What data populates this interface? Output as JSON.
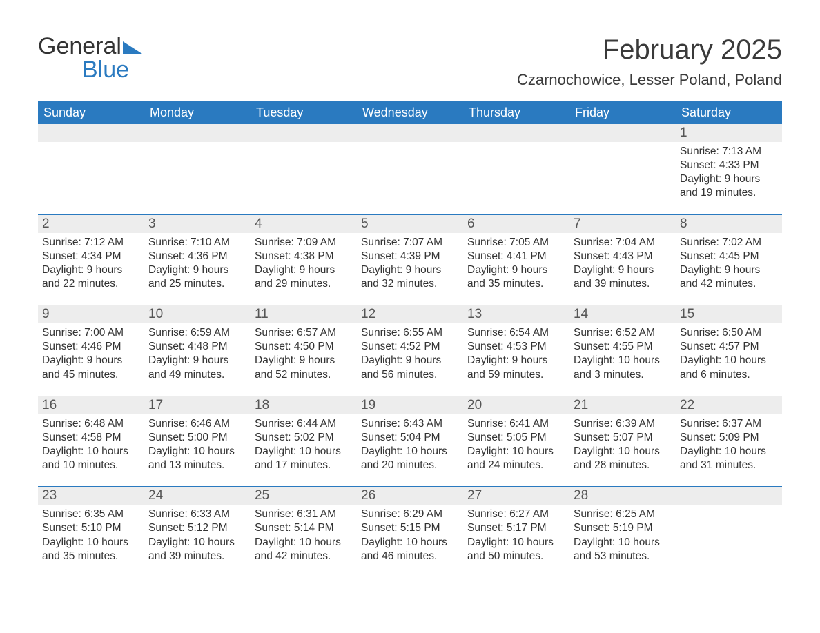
{
  "brand": {
    "name_part1": "General",
    "name_part2": "Blue",
    "brand_color": "#2a7ac0",
    "text_color": "#333333"
  },
  "title": "February 2025",
  "location": "Czarnochowice, Lesser Poland, Poland",
  "colors": {
    "header_bg": "#2a7ac0",
    "header_text": "#ffffff",
    "daynum_bg": "#ededed",
    "text": "#333333",
    "sep_line": "#2a7ac0",
    "background": "#ffffff"
  },
  "day_headers": [
    "Sunday",
    "Monday",
    "Tuesday",
    "Wednesday",
    "Thursday",
    "Friday",
    "Saturday"
  ],
  "weeks": [
    [
      {
        "day": "",
        "sunrise": "",
        "sunset": "",
        "daylight": ""
      },
      {
        "day": "",
        "sunrise": "",
        "sunset": "",
        "daylight": ""
      },
      {
        "day": "",
        "sunrise": "",
        "sunset": "",
        "daylight": ""
      },
      {
        "day": "",
        "sunrise": "",
        "sunset": "",
        "daylight": ""
      },
      {
        "day": "",
        "sunrise": "",
        "sunset": "",
        "daylight": ""
      },
      {
        "day": "",
        "sunrise": "",
        "sunset": "",
        "daylight": ""
      },
      {
        "day": "1",
        "sunrise": "Sunrise: 7:13 AM",
        "sunset": "Sunset: 4:33 PM",
        "daylight": "Daylight: 9 hours and 19 minutes."
      }
    ],
    [
      {
        "day": "2",
        "sunrise": "Sunrise: 7:12 AM",
        "sunset": "Sunset: 4:34 PM",
        "daylight": "Daylight: 9 hours and 22 minutes."
      },
      {
        "day": "3",
        "sunrise": "Sunrise: 7:10 AM",
        "sunset": "Sunset: 4:36 PM",
        "daylight": "Daylight: 9 hours and 25 minutes."
      },
      {
        "day": "4",
        "sunrise": "Sunrise: 7:09 AM",
        "sunset": "Sunset: 4:38 PM",
        "daylight": "Daylight: 9 hours and 29 minutes."
      },
      {
        "day": "5",
        "sunrise": "Sunrise: 7:07 AM",
        "sunset": "Sunset: 4:39 PM",
        "daylight": "Daylight: 9 hours and 32 minutes."
      },
      {
        "day": "6",
        "sunrise": "Sunrise: 7:05 AM",
        "sunset": "Sunset: 4:41 PM",
        "daylight": "Daylight: 9 hours and 35 minutes."
      },
      {
        "day": "7",
        "sunrise": "Sunrise: 7:04 AM",
        "sunset": "Sunset: 4:43 PM",
        "daylight": "Daylight: 9 hours and 39 minutes."
      },
      {
        "day": "8",
        "sunrise": "Sunrise: 7:02 AM",
        "sunset": "Sunset: 4:45 PM",
        "daylight": "Daylight: 9 hours and 42 minutes."
      }
    ],
    [
      {
        "day": "9",
        "sunrise": "Sunrise: 7:00 AM",
        "sunset": "Sunset: 4:46 PM",
        "daylight": "Daylight: 9 hours and 45 minutes."
      },
      {
        "day": "10",
        "sunrise": "Sunrise: 6:59 AM",
        "sunset": "Sunset: 4:48 PM",
        "daylight": "Daylight: 9 hours and 49 minutes."
      },
      {
        "day": "11",
        "sunrise": "Sunrise: 6:57 AM",
        "sunset": "Sunset: 4:50 PM",
        "daylight": "Daylight: 9 hours and 52 minutes."
      },
      {
        "day": "12",
        "sunrise": "Sunrise: 6:55 AM",
        "sunset": "Sunset: 4:52 PM",
        "daylight": "Daylight: 9 hours and 56 minutes."
      },
      {
        "day": "13",
        "sunrise": "Sunrise: 6:54 AM",
        "sunset": "Sunset: 4:53 PM",
        "daylight": "Daylight: 9 hours and 59 minutes."
      },
      {
        "day": "14",
        "sunrise": "Sunrise: 6:52 AM",
        "sunset": "Sunset: 4:55 PM",
        "daylight": "Daylight: 10 hours and 3 minutes."
      },
      {
        "day": "15",
        "sunrise": "Sunrise: 6:50 AM",
        "sunset": "Sunset: 4:57 PM",
        "daylight": "Daylight: 10 hours and 6 minutes."
      }
    ],
    [
      {
        "day": "16",
        "sunrise": "Sunrise: 6:48 AM",
        "sunset": "Sunset: 4:58 PM",
        "daylight": "Daylight: 10 hours and 10 minutes."
      },
      {
        "day": "17",
        "sunrise": "Sunrise: 6:46 AM",
        "sunset": "Sunset: 5:00 PM",
        "daylight": "Daylight: 10 hours and 13 minutes."
      },
      {
        "day": "18",
        "sunrise": "Sunrise: 6:44 AM",
        "sunset": "Sunset: 5:02 PM",
        "daylight": "Daylight: 10 hours and 17 minutes."
      },
      {
        "day": "19",
        "sunrise": "Sunrise: 6:43 AM",
        "sunset": "Sunset: 5:04 PM",
        "daylight": "Daylight: 10 hours and 20 minutes."
      },
      {
        "day": "20",
        "sunrise": "Sunrise: 6:41 AM",
        "sunset": "Sunset: 5:05 PM",
        "daylight": "Daylight: 10 hours and 24 minutes."
      },
      {
        "day": "21",
        "sunrise": "Sunrise: 6:39 AM",
        "sunset": "Sunset: 5:07 PM",
        "daylight": "Daylight: 10 hours and 28 minutes."
      },
      {
        "day": "22",
        "sunrise": "Sunrise: 6:37 AM",
        "sunset": "Sunset: 5:09 PM",
        "daylight": "Daylight: 10 hours and 31 minutes."
      }
    ],
    [
      {
        "day": "23",
        "sunrise": "Sunrise: 6:35 AM",
        "sunset": "Sunset: 5:10 PM",
        "daylight": "Daylight: 10 hours and 35 minutes."
      },
      {
        "day": "24",
        "sunrise": "Sunrise: 6:33 AM",
        "sunset": "Sunset: 5:12 PM",
        "daylight": "Daylight: 10 hours and 39 minutes."
      },
      {
        "day": "25",
        "sunrise": "Sunrise: 6:31 AM",
        "sunset": "Sunset: 5:14 PM",
        "daylight": "Daylight: 10 hours and 42 minutes."
      },
      {
        "day": "26",
        "sunrise": "Sunrise: 6:29 AM",
        "sunset": "Sunset: 5:15 PM",
        "daylight": "Daylight: 10 hours and 46 minutes."
      },
      {
        "day": "27",
        "sunrise": "Sunrise: 6:27 AM",
        "sunset": "Sunset: 5:17 PM",
        "daylight": "Daylight: 10 hours and 50 minutes."
      },
      {
        "day": "28",
        "sunrise": "Sunrise: 6:25 AM",
        "sunset": "Sunset: 5:19 PM",
        "daylight": "Daylight: 10 hours and 53 minutes."
      },
      {
        "day": "",
        "sunrise": "",
        "sunset": "",
        "daylight": ""
      }
    ]
  ]
}
